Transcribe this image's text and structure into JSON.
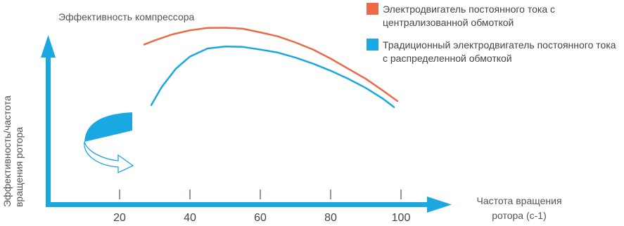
{
  "chart_data": {
    "type": "line",
    "title": "Эффективность компрессора",
    "ylabel": "Эффективность/частота вращения ротора",
    "xlabel": "Частота вращения ротора (с-1)",
    "x_ticks": [
      20,
      40,
      60,
      80,
      100
    ],
    "xlim": [
      0,
      120
    ],
    "ylim": [
      0,
      1
    ],
    "grid": false,
    "legend_position": "top-right",
    "series": [
      {
        "name": "Электродвигатель постоянного тока с централизованной обмоткой",
        "color": "#ec6a47",
        "x": [
          27,
          30,
          35,
          40,
          45,
          50,
          55,
          60,
          65,
          70,
          75,
          80,
          85,
          90,
          95,
          99
        ],
        "y": [
          0.78,
          0.8,
          0.83,
          0.85,
          0.862,
          0.863,
          0.858,
          0.84,
          0.82,
          0.79,
          0.755,
          0.71,
          0.66,
          0.61,
          0.55,
          0.5
        ]
      },
      {
        "name": "Традиционный электродвигатель постоянного тока с распределенной обмоткой",
        "color": "#1aa8e2",
        "x": [
          29,
          32,
          36,
          40,
          45,
          50,
          55,
          60,
          65,
          70,
          75,
          80,
          85,
          90,
          95,
          98
        ],
        "y": [
          0.48,
          0.57,
          0.66,
          0.72,
          0.76,
          0.77,
          0.768,
          0.755,
          0.74,
          0.715,
          0.685,
          0.65,
          0.61,
          0.565,
          0.51,
          0.47
        ]
      }
    ]
  },
  "colors": {
    "axis": "#1aa8e2",
    "tick": "#8a9aaa",
    "arrow_fill": "#1aa8e2"
  },
  "icon": "curved-arrow-icon"
}
